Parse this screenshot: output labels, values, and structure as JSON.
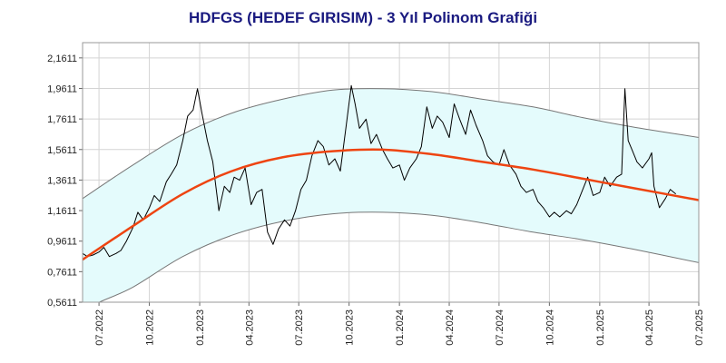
{
  "chart_data": {
    "type": "line",
    "title": "HDFGS (HEDEF GIRISIM) - 3 Yıl Polinom Grafiği",
    "xlabel": "",
    "ylabel": "",
    "ylim": [
      0.5611,
      2.2611
    ],
    "xlim": [
      "2022-06-01",
      "2025-07-01"
    ],
    "grid": true,
    "y_ticks": [
      "0,5611",
      "0,7611",
      "0,9611",
      "1,1611",
      "1,3611",
      "1,5611",
      "1,7611",
      "1,9611",
      "2,1611"
    ],
    "x_ticks": [
      {
        "date": "2022-07-01",
        "label": "07.2022"
      },
      {
        "date": "2022-10-01",
        "label": "10.2022"
      },
      {
        "date": "2023-01-01",
        "label": "01.2023"
      },
      {
        "date": "2023-04-01",
        "label": "04.2023"
      },
      {
        "date": "2023-07-01",
        "label": "07.2023"
      },
      {
        "date": "2023-10-01",
        "label": "10.2023"
      },
      {
        "date": "2024-01-01",
        "label": "01.2024"
      },
      {
        "date": "2024-04-01",
        "label": "04.2024"
      },
      {
        "date": "2024-07-01",
        "label": "07.2024"
      },
      {
        "date": "2024-10-01",
        "label": "10.2024"
      },
      {
        "date": "2025-01-01",
        "label": "01.2025"
      },
      {
        "date": "2025-04-01",
        "label": "04.2025"
      },
      {
        "date": "2025-07-01",
        "label": "07.2025"
      }
    ],
    "series": [
      {
        "role": "price",
        "color": "#000000",
        "points": [
          [
            "2022-06-01",
            0.88
          ],
          [
            "2022-06-10",
            0.86
          ],
          [
            "2022-06-20",
            0.87
          ],
          [
            "2022-07-01",
            0.89
          ],
          [
            "2022-07-10",
            0.92
          ],
          [
            "2022-07-20",
            0.86
          ],
          [
            "2022-08-01",
            0.88
          ],
          [
            "2022-08-10",
            0.9
          ],
          [
            "2022-08-20",
            0.96
          ],
          [
            "2022-09-01",
            1.05
          ],
          [
            "2022-09-10",
            1.15
          ],
          [
            "2022-09-20",
            1.1
          ],
          [
            "2022-10-01",
            1.18
          ],
          [
            "2022-10-10",
            1.26
          ],
          [
            "2022-10-20",
            1.22
          ],
          [
            "2022-11-01",
            1.35
          ],
          [
            "2022-11-10",
            1.4
          ],
          [
            "2022-11-20",
            1.46
          ],
          [
            "2022-12-01",
            1.62
          ],
          [
            "2022-12-10",
            1.78
          ],
          [
            "2022-12-20",
            1.82
          ],
          [
            "2022-12-28",
            1.96
          ],
          [
            "2023-01-05",
            1.8
          ],
          [
            "2023-01-15",
            1.62
          ],
          [
            "2023-01-25",
            1.48
          ],
          [
            "2023-02-05",
            1.16
          ],
          [
            "2023-02-15",
            1.32
          ],
          [
            "2023-02-25",
            1.28
          ],
          [
            "2023-03-05",
            1.38
          ],
          [
            "2023-03-15",
            1.36
          ],
          [
            "2023-03-25",
            1.44
          ],
          [
            "2023-04-05",
            1.2
          ],
          [
            "2023-04-15",
            1.28
          ],
          [
            "2023-04-25",
            1.3
          ],
          [
            "2023-05-05",
            1.02
          ],
          [
            "2023-05-15",
            0.94
          ],
          [
            "2023-05-25",
            1.04
          ],
          [
            "2023-06-05",
            1.1
          ],
          [
            "2023-06-15",
            1.06
          ],
          [
            "2023-06-25",
            1.16
          ],
          [
            "2023-07-05",
            1.3
          ],
          [
            "2023-07-15",
            1.36
          ],
          [
            "2023-07-25",
            1.52
          ],
          [
            "2023-08-05",
            1.62
          ],
          [
            "2023-08-15",
            1.58
          ],
          [
            "2023-08-25",
            1.46
          ],
          [
            "2023-09-05",
            1.5
          ],
          [
            "2023-09-15",
            1.42
          ],
          [
            "2023-09-25",
            1.7
          ],
          [
            "2023-10-05",
            1.98
          ],
          [
            "2023-10-12",
            1.86
          ],
          [
            "2023-10-20",
            1.7
          ],
          [
            "2023-11-01",
            1.76
          ],
          [
            "2023-11-10",
            1.6
          ],
          [
            "2023-11-20",
            1.66
          ],
          [
            "2023-12-01",
            1.56
          ],
          [
            "2023-12-10",
            1.5
          ],
          [
            "2023-12-20",
            1.44
          ],
          [
            "2024-01-01",
            1.46
          ],
          [
            "2024-01-10",
            1.36
          ],
          [
            "2024-01-20",
            1.44
          ],
          [
            "2024-02-01",
            1.5
          ],
          [
            "2024-02-10",
            1.58
          ],
          [
            "2024-02-20",
            1.84
          ],
          [
            "2024-03-01",
            1.7
          ],
          [
            "2024-03-10",
            1.78
          ],
          [
            "2024-03-20",
            1.74
          ],
          [
            "2024-04-01",
            1.64
          ],
          [
            "2024-04-10",
            1.86
          ],
          [
            "2024-04-20",
            1.76
          ],
          [
            "2024-05-01",
            1.66
          ],
          [
            "2024-05-10",
            1.82
          ],
          [
            "2024-05-20",
            1.72
          ],
          [
            "2024-06-01",
            1.62
          ],
          [
            "2024-06-10",
            1.52
          ],
          [
            "2024-06-20",
            1.48
          ],
          [
            "2024-07-01",
            1.46
          ],
          [
            "2024-07-10",
            1.56
          ],
          [
            "2024-07-20",
            1.46
          ],
          [
            "2024-08-01",
            1.4
          ],
          [
            "2024-08-10",
            1.32
          ],
          [
            "2024-08-20",
            1.28
          ],
          [
            "2024-09-01",
            1.3
          ],
          [
            "2024-09-10",
            1.22
          ],
          [
            "2024-09-20",
            1.18
          ],
          [
            "2024-10-01",
            1.12
          ],
          [
            "2024-10-10",
            1.15
          ],
          [
            "2024-10-20",
            1.12
          ],
          [
            "2024-11-01",
            1.16
          ],
          [
            "2024-11-10",
            1.14
          ],
          [
            "2024-11-20",
            1.2
          ],
          [
            "2024-12-01",
            1.3
          ],
          [
            "2024-12-10",
            1.38
          ],
          [
            "2024-12-20",
            1.26
          ],
          [
            "2025-01-01",
            1.28
          ],
          [
            "2025-01-10",
            1.38
          ],
          [
            "2025-01-20",
            1.32
          ],
          [
            "2025-02-01",
            1.38
          ],
          [
            "2025-02-10",
            1.4
          ],
          [
            "2025-02-16",
            1.96
          ],
          [
            "2025-02-22",
            1.62
          ],
          [
            "2025-03-01",
            1.56
          ],
          [
            "2025-03-10",
            1.48
          ],
          [
            "2025-03-20",
            1.44
          ],
          [
            "2025-04-01",
            1.5
          ],
          [
            "2025-04-06",
            1.54
          ],
          [
            "2025-04-10",
            1.32
          ],
          [
            "2025-04-20",
            1.18
          ],
          [
            "2025-05-01",
            1.24
          ],
          [
            "2025-05-10",
            1.3
          ],
          [
            "2025-05-20",
            1.27
          ]
        ]
      },
      {
        "role": "polynomial-trend",
        "color": "#ee4411",
        "points": [
          [
            "2022-06-01",
            0.84
          ],
          [
            "2022-09-01",
            1.06
          ],
          [
            "2022-12-01",
            1.27
          ],
          [
            "2023-03-01",
            1.42
          ],
          [
            "2023-06-01",
            1.51
          ],
          [
            "2023-09-01",
            1.55
          ],
          [
            "2023-12-01",
            1.56
          ],
          [
            "2024-03-01",
            1.53
          ],
          [
            "2024-06-01",
            1.48
          ],
          [
            "2024-09-01",
            1.43
          ],
          [
            "2024-12-01",
            1.37
          ],
          [
            "2025-03-01",
            1.31
          ],
          [
            "2025-07-01",
            1.23
          ]
        ]
      },
      {
        "role": "upper-band",
        "color": "#777777",
        "points": [
          [
            "2022-06-01",
            1.24
          ],
          [
            "2022-09-01",
            1.46
          ],
          [
            "2022-12-01",
            1.66
          ],
          [
            "2023-03-01",
            1.8
          ],
          [
            "2023-06-01",
            1.89
          ],
          [
            "2023-09-01",
            1.95
          ],
          [
            "2023-12-01",
            1.96
          ],
          [
            "2024-03-01",
            1.94
          ],
          [
            "2024-06-01",
            1.89
          ],
          [
            "2024-09-01",
            1.84
          ],
          [
            "2024-12-01",
            1.77
          ],
          [
            "2025-03-01",
            1.71
          ],
          [
            "2025-07-01",
            1.64
          ]
        ]
      },
      {
        "role": "lower-band",
        "color": "#777777",
        "points": [
          [
            "2022-07-01",
            0.56
          ],
          [
            "2022-09-01",
            0.66
          ],
          [
            "2022-12-01",
            0.86
          ],
          [
            "2023-03-01",
            1.0
          ],
          [
            "2023-06-01",
            1.09
          ],
          [
            "2023-09-01",
            1.14
          ],
          [
            "2023-12-01",
            1.15
          ],
          [
            "2024-03-01",
            1.13
          ],
          [
            "2024-06-01",
            1.08
          ],
          [
            "2024-09-01",
            1.02
          ],
          [
            "2024-12-01",
            0.97
          ],
          [
            "2025-03-01",
            0.91
          ],
          [
            "2025-07-01",
            0.82
          ]
        ]
      }
    ],
    "band_fill_color": "#e4fbfc"
  }
}
